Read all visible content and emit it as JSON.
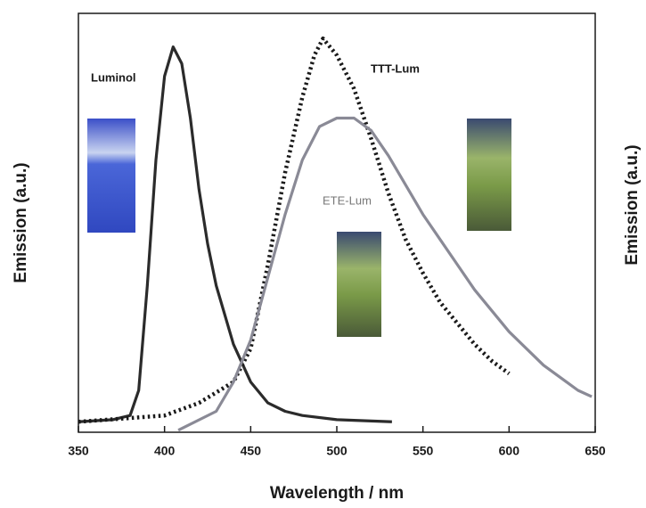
{
  "chart_data": {
    "type": "line",
    "x_label": "Wavelength / nm",
    "y_label": "Emission (a.u.)",
    "y2_label": "Emission (a.u.)",
    "xlim": [
      350,
      650
    ],
    "xticks": [
      350,
      400,
      450,
      500,
      550,
      600,
      650
    ],
    "ylim": [
      0,
      100
    ],
    "annotations": [
      "Luminol",
      "TTT-Lum",
      "ETE-Lum"
    ],
    "series": [
      {
        "name": "Luminol",
        "color": "#2b2b2b",
        "style": "solid",
        "x": [
          350,
          370,
          380,
          385,
          390,
          395,
          400,
          405,
          410,
          415,
          420,
          425,
          430,
          440,
          450,
          460,
          470,
          480,
          500,
          532
        ],
        "values": [
          2.5,
          3,
          4,
          10,
          35,
          65,
          85,
          92,
          88,
          75,
          58,
          45,
          35,
          21,
          12,
          7,
          5,
          4,
          3,
          2.5
        ]
      },
      {
        "name": "TTT-Lum",
        "color": "#1a1a1a",
        "style": "dotted",
        "x": [
          350,
          400,
          420,
          440,
          450,
          460,
          470,
          480,
          487,
          492,
          500,
          510,
          520,
          530,
          540,
          550,
          560,
          570,
          580,
          590,
          600
        ],
        "values": [
          2.5,
          4,
          7,
          12,
          20,
          40,
          62,
          80,
          90,
          94,
          90,
          82,
          70,
          57,
          46,
          38,
          31,
          26,
          21,
          17,
          14
        ]
      },
      {
        "name": "ETE-Lum",
        "color": "#8a8a96",
        "style": "solid",
        "x": [
          408,
          430,
          440,
          450,
          460,
          470,
          480,
          490,
          500,
          510,
          520,
          530,
          540,
          550,
          560,
          570,
          580,
          590,
          600,
          620,
          640,
          648
        ],
        "values": [
          0.5,
          5,
          12,
          22,
          37,
          52,
          65,
          73,
          75,
          75,
          72,
          66,
          59,
          52,
          46,
          40,
          34,
          29,
          24,
          16,
          10,
          8.5
        ]
      }
    ]
  }
}
